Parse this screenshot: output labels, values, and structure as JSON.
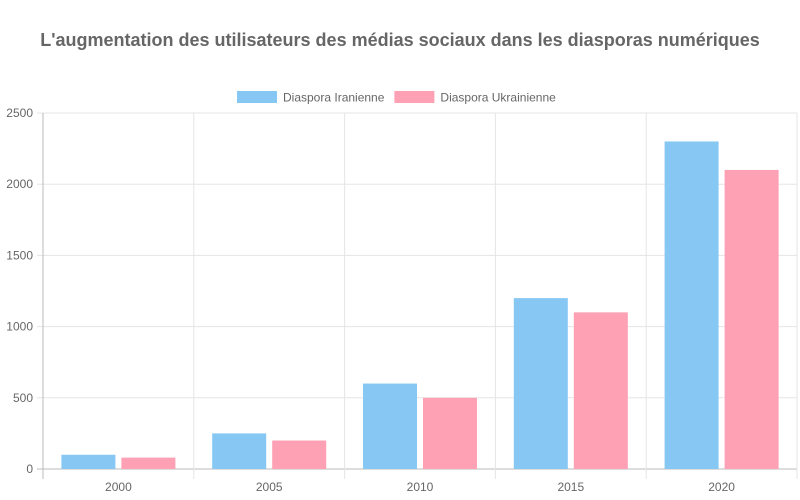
{
  "chart_data": {
    "type": "bar",
    "title": "L'augmentation des utilisateurs des médias sociaux dans les diasporas numériques",
    "categories": [
      "2000",
      "2005",
      "2010",
      "2015",
      "2020"
    ],
    "series": [
      {
        "name": "Diaspora Iranienne",
        "values": [
          100,
          250,
          600,
          1200,
          2300
        ],
        "color": "#87c7f3"
      },
      {
        "name": "Diaspora Ukrainienne",
        "values": [
          80,
          200,
          500,
          1100,
          2100
        ],
        "color": "#ffa1b5"
      }
    ],
    "ylim": [
      0,
      2500
    ],
    "yticks": [
      "0",
      "500",
      "1000",
      "1500",
      "2000",
      "2500"
    ],
    "grid": true,
    "legend": "top"
  }
}
